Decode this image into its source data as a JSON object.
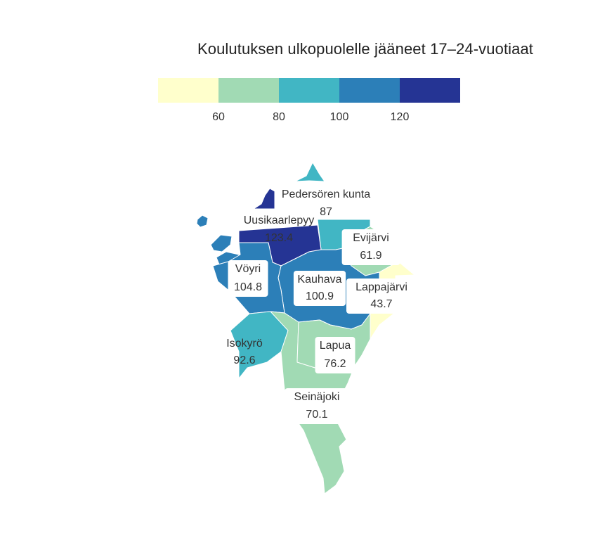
{
  "title": "Koulutuksen ulkopuolelle jääneet 17–24-vuotiaat",
  "legend": {
    "bins": [
      {
        "color": "#ffffcc"
      },
      {
        "color": "#a1dab4"
      },
      {
        "color": "#41b6c4"
      },
      {
        "color": "#2c7fb8"
      },
      {
        "color": "#253494"
      }
    ],
    "ticks": [
      "60",
      "80",
      "100",
      "120"
    ]
  },
  "municipalities": [
    {
      "name": "Pedersören kunta",
      "value": "87",
      "color": "#41b6c4"
    },
    {
      "name": "Uusikaarlepyy",
      "value": "123.4",
      "color": "#253494"
    },
    {
      "name": "Evijärvi",
      "value": "61.9",
      "color": "#a1dab4"
    },
    {
      "name": "Vöyri",
      "value": "104.8",
      "color": "#2c7fb8"
    },
    {
      "name": "Kauhava",
      "value": "100.9",
      "color": "#2c7fb8"
    },
    {
      "name": "Lappajärvi",
      "value": "43.7",
      "color": "#ffffcc"
    },
    {
      "name": "Isokyrö",
      "value": "92.6",
      "color": "#41b6c4"
    },
    {
      "name": "Lapua",
      "value": "76.2",
      "color": "#a1dab4"
    },
    {
      "name": "Seinäjoki",
      "value": "70.1",
      "color": "#a1dab4"
    }
  ]
}
